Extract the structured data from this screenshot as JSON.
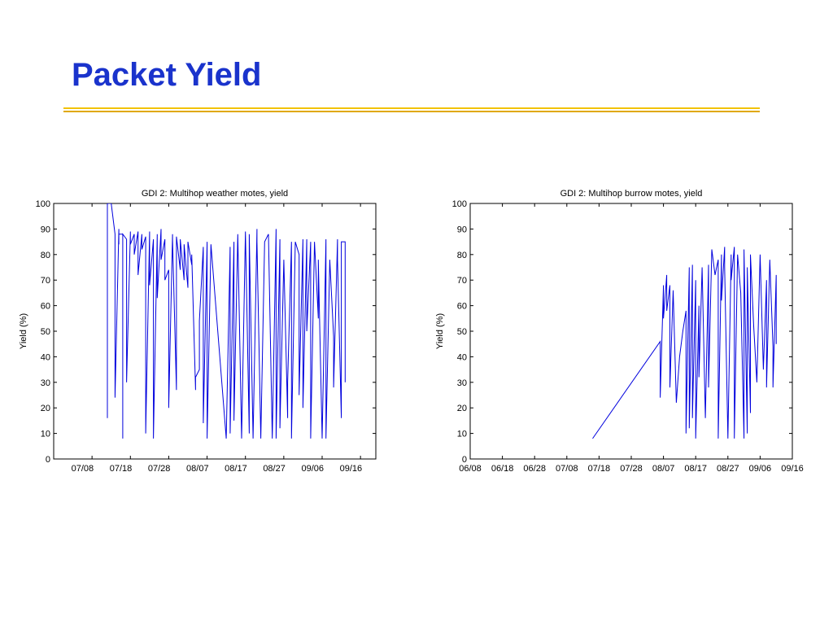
{
  "slide": {
    "title": "Packet Yield",
    "title_color": "#1a33cc",
    "rule_colors": [
      "#f2c200",
      "#e0a800"
    ]
  },
  "chart_data": [
    {
      "type": "line",
      "title": "GDI 2: Multihop weather motes, yield",
      "xlabel": "",
      "ylabel": "Yield (%)",
      "ylim": [
        0,
        100
      ],
      "yticks": [
        0,
        10,
        20,
        30,
        40,
        50,
        60,
        70,
        80,
        90,
        100
      ],
      "xlim": [
        "06/28",
        "09/20"
      ],
      "xticks": [
        "07/08",
        "07/18",
        "07/28",
        "08/07",
        "08/17",
        "08/27",
        "09/06",
        "09/16"
      ],
      "grid": false,
      "line_color": "#0000dd",
      "series": [
        {
          "x": [
            "07/12",
            "07/12",
            "07/13",
            "07/14",
            "07/14",
            "07/15",
            "07/15",
            "07/15",
            "07/16",
            "07/16",
            "07/16",
            "07/17",
            "07/17",
            "07/18",
            "07/18",
            "07/19",
            "07/19",
            "07/20",
            "07/20",
            "07/21",
            "07/21",
            "07/22",
            "07/22",
            "07/23",
            "07/23",
            "07/24",
            "07/24",
            "07/25",
            "07/25",
            "07/26",
            "07/26",
            "07/27",
            "07/27",
            "07/28",
            "07/28",
            "07/29",
            "07/29",
            "07/30",
            "07/30",
            "07/31",
            "07/31",
            "08/01",
            "08/01",
            "08/02",
            "08/02",
            "08/03",
            "08/03",
            "08/04",
            "08/04",
            "08/05",
            "08/05",
            "08/06",
            "08/06",
            "08/07",
            "08/07",
            "08/08",
            "08/12",
            "08/13",
            "08/13",
            "08/14",
            "08/14",
            "08/15",
            "08/16",
            "08/17",
            "08/18",
            "08/18",
            "08/19",
            "08/20",
            "08/20",
            "08/21",
            "08/22",
            "08/23",
            "08/24",
            "08/25",
            "08/25",
            "08/26",
            "08/26",
            "08/27",
            "08/28",
            "08/28",
            "08/29",
            "08/29",
            "08/30",
            "08/31",
            "08/31",
            "09/01",
            "09/01",
            "09/02",
            "09/02",
            "09/03",
            "09/03",
            "09/04",
            "09/05",
            "09/05",
            "09/06",
            "09/07",
            "09/07",
            "09/08",
            "09/09",
            "09/09",
            "09/10",
            "09/10",
            "09/11",
            "09/11",
            "09/12",
            "09/12"
          ],
          "y": [
            16,
            100,
            100,
            88,
            24,
            90,
            84,
            88,
            88,
            8,
            88,
            86,
            30,
            89,
            84,
            88,
            80,
            89,
            72,
            88,
            82,
            87,
            10,
            89,
            68,
            86,
            8,
            88,
            63,
            90,
            78,
            86,
            70,
            74,
            20,
            88,
            86,
            27,
            87,
            74,
            86,
            70,
            84,
            67,
            85,
            76,
            80,
            27,
            32,
            35,
            54,
            83,
            14,
            85,
            8,
            84,
            8,
            83,
            10,
            85,
            15,
            88,
            8,
            89,
            10,
            88,
            8,
            90,
            85,
            8,
            85,
            88,
            8,
            90,
            8,
            86,
            12,
            78,
            16,
            30,
            85,
            8,
            85,
            80,
            25,
            86,
            20,
            86,
            50,
            85,
            8,
            85,
            55,
            78,
            8,
            86,
            8,
            78,
            48,
            28,
            86,
            78,
            16,
            85,
            85,
            30
          ]
        }
      ]
    },
    {
      "type": "line",
      "title": "GDI 2: Multihop burrow motes, yield",
      "xlabel": "",
      "ylabel": "Yield (%)",
      "ylim": [
        0,
        100
      ],
      "yticks": [
        0,
        10,
        20,
        30,
        40,
        50,
        60,
        70,
        80,
        90,
        100
      ],
      "xlim": [
        "06/08",
        "09/16"
      ],
      "xticks": [
        "06/08",
        "06/18",
        "06/28",
        "07/08",
        "07/18",
        "07/28",
        "08/07",
        "08/17",
        "08/27",
        "09/06",
        "09/16"
      ],
      "grid": false,
      "line_color": "#0000dd",
      "series": [
        {
          "x": [
            "07/16",
            "08/06",
            "08/06",
            "08/07",
            "08/07",
            "08/08",
            "08/08",
            "08/09",
            "08/09",
            "08/10",
            "08/11",
            "08/12",
            "08/13",
            "08/14",
            "08/14",
            "08/15",
            "08/15",
            "08/16",
            "08/16",
            "08/17",
            "08/17",
            "08/18",
            "08/18",
            "08/19",
            "08/20",
            "08/21",
            "08/21",
            "08/22",
            "08/23",
            "08/24",
            "08/24",
            "08/25",
            "08/25",
            "08/26",
            "08/26",
            "08/27",
            "08/28",
            "08/28",
            "08/29",
            "08/29",
            "08/30",
            "08/31",
            "09/01",
            "09/01",
            "09/02",
            "09/02",
            "09/03",
            "09/03",
            "09/04",
            "09/05",
            "09/06",
            "09/07",
            "09/08",
            "09/08",
            "09/09",
            "09/10",
            "09/10",
            "09/11",
            "09/11"
          ],
          "y": [
            8,
            46,
            24,
            68,
            55,
            72,
            58,
            68,
            28,
            66,
            22,
            40,
            50,
            58,
            10,
            75,
            12,
            76,
            16,
            70,
            8,
            60,
            32,
            75,
            16,
            76,
            28,
            82,
            72,
            78,
            8,
            80,
            62,
            83,
            75,
            8,
            80,
            70,
            83,
            8,
            80,
            65,
            8,
            82,
            10,
            75,
            18,
            80,
            52,
            30,
            80,
            35,
            70,
            28,
            78,
            44,
            28,
            72,
            45
          ]
        }
      ]
    }
  ]
}
